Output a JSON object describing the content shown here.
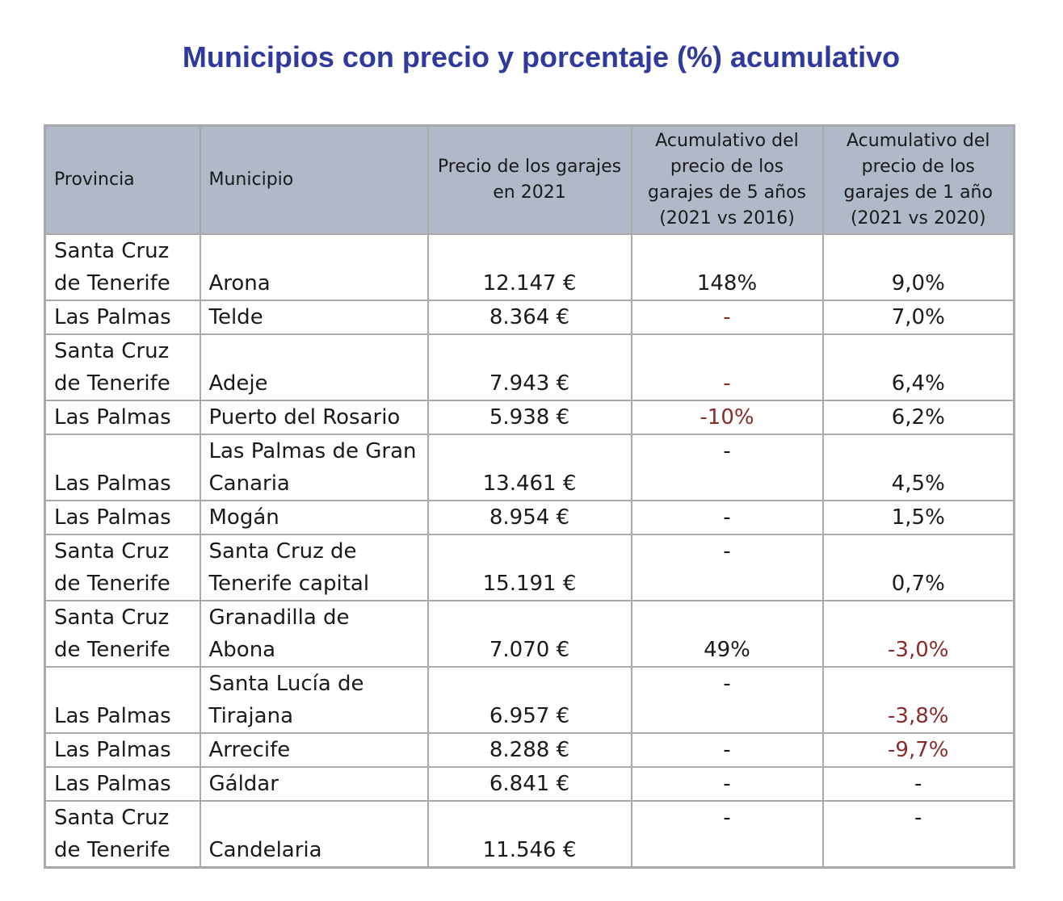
{
  "title": "Municipios con precio y porcentaje (%) acumulativo",
  "colors": {
    "title": "#2f3a9c",
    "header_bg": "#b0b9c8",
    "negative": "#8b2a2a",
    "border": "#a9a9a9"
  },
  "table": {
    "headers": [
      "Provincia",
      "Municipio",
      "Precio de los garajes en 2021",
      "Acumulativo del precio de los garajes de 5 años (2021 vs 2016)",
      "Acumulativo del precio de los garajes de 1 año (2021 vs 2020)"
    ],
    "rows": [
      {
        "provincia": "Santa Cruz de Tenerife",
        "municipio": "Arona",
        "precio": "12.147 €",
        "acum5": "148%",
        "acum1": "9,0%"
      },
      {
        "provincia": "Las Palmas",
        "municipio": "Telde",
        "precio": "8.364 €",
        "acum5": "-",
        "acum1": "7,0%"
      },
      {
        "provincia": "Santa Cruz de Tenerife",
        "municipio": "Adeje",
        "precio": "7.943 €",
        "acum5": "-",
        "acum1": "6,4%"
      },
      {
        "provincia": "Las Palmas",
        "municipio": "Puerto del Rosario",
        "precio": "5.938 €",
        "acum5": "-10%",
        "acum1": "6,2%"
      },
      {
        "provincia": "Las Palmas",
        "municipio": "Las Palmas de Gran Canaria",
        "precio": "13.461 €",
        "acum5": "-",
        "acum1": "4,5%"
      },
      {
        "provincia": "Las Palmas",
        "municipio": "Mogán",
        "precio": "8.954 €",
        "acum5": "-",
        "acum1": "1,5%"
      },
      {
        "provincia": "Santa Cruz de Tenerife",
        "municipio": "Santa Cruz de Tenerife capital",
        "precio": "15.191 €",
        "acum5": "-",
        "acum1": "0,7%"
      },
      {
        "provincia": "Santa Cruz de Tenerife",
        "municipio": "Granadilla de Abona",
        "precio": "7.070 €",
        "acum5": "49%",
        "acum1": "-3,0%"
      },
      {
        "provincia": "Las Palmas",
        "municipio": "Santa Lucía de Tirajana",
        "precio": "6.957 €",
        "acum5": "-",
        "acum1": "-3,8%"
      },
      {
        "provincia": "Las Palmas",
        "municipio": "Arrecife",
        "precio": "8.288 €",
        "acum5": "-",
        "acum1": "-9,7%"
      },
      {
        "provincia": "Las Palmas",
        "municipio": "Gáldar",
        "precio": "6.841 €",
        "acum5": "-",
        "acum1": "-"
      },
      {
        "provincia": "Santa Cruz de Tenerife",
        "municipio": "Candelaria",
        "precio": "11.546 €",
        "acum5": "-",
        "acum1": "-"
      }
    ]
  }
}
